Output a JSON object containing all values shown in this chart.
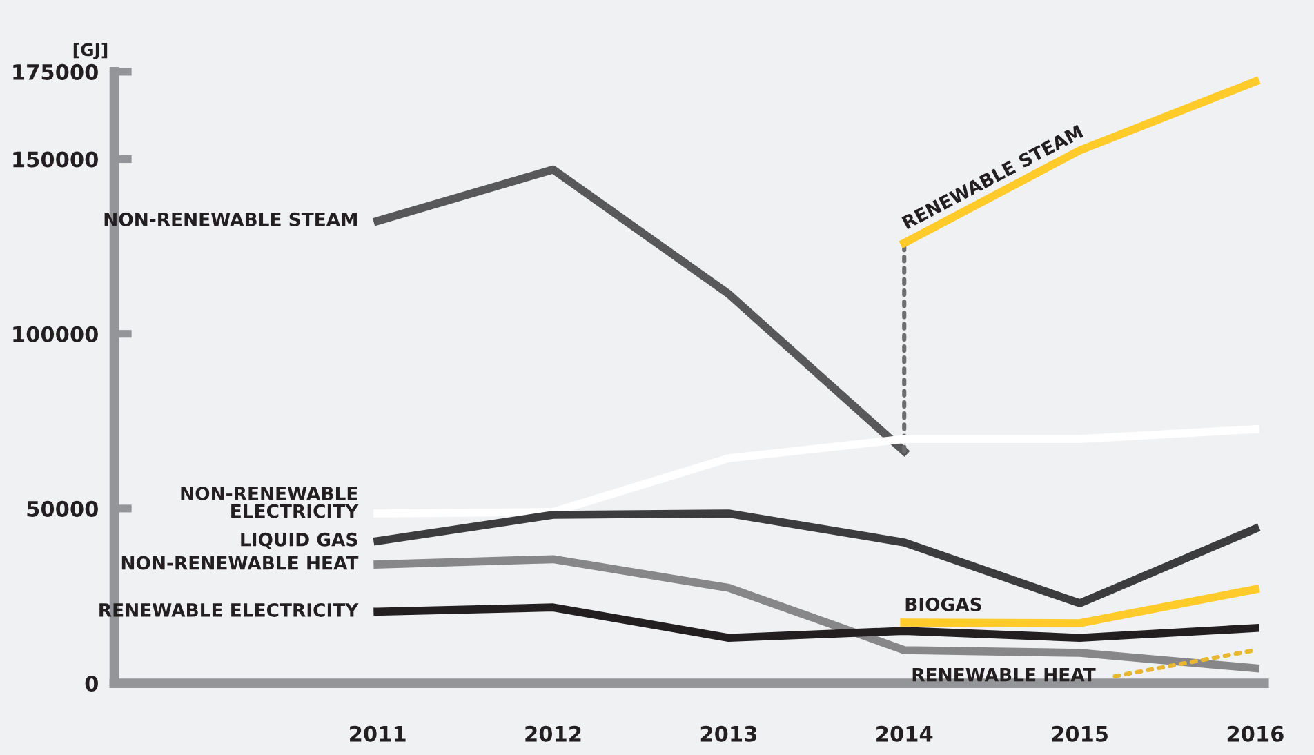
{
  "chart_data": {
    "type": "line",
    "ylabel": "[GJ]",
    "xlim": [
      2009.5,
      2016.05
    ],
    "xticks": [
      2011,
      2012,
      2013,
      2014,
      2015,
      2016
    ],
    "ylim": [
      0,
      175000
    ],
    "yticks": [
      0,
      50000,
      100000,
      150000,
      175000
    ],
    "grid": false,
    "legend": false,
    "marker": "none",
    "line_style": "solid",
    "series": [
      {
        "name": "NON-RENEWABLE STEAM",
        "color": "#58585a",
        "x": [
          2011,
          2012,
          2013,
          2014
        ],
        "values": [
          132300,
          147000,
          111400,
          66400
        ]
      },
      {
        "color": "#6d6d70",
        "x": [
          2014,
          2014
        ],
        "values": [
          66400,
          126000
        ],
        "line_style": "dotted"
      },
      {
        "name": "RENEWABLE STEAM",
        "color": "#ffcb2b",
        "x": [
          2014,
          2015,
          2016
        ],
        "values": [
          126000,
          152500,
          172200
        ]
      },
      {
        "name": "NON-RENEWABLE\nELECTRICITY",
        "color": "#ffffff",
        "x": [
          2011,
          2012,
          2013,
          2014,
          2015,
          2016
        ],
        "values": [
          48600,
          49000,
          64400,
          69900,
          69900,
          72700
        ]
      },
      {
        "name": "LIQUID GAS",
        "color": "#3c3c3e",
        "x": [
          2011,
          2012,
          2013,
          2014,
          2015,
          2016
        ],
        "values": [
          40700,
          48200,
          48600,
          40300,
          22900,
          44200
        ]
      },
      {
        "name": "NON-RENEWABLE HEAT",
        "color": "#87878a",
        "x": [
          2011,
          2012,
          2013,
          2014,
          2015,
          2016
        ],
        "values": [
          34000,
          35500,
          27300,
          9500,
          8700,
          4300
        ]
      },
      {
        "name": "RENEWABLE ELECTRICITY",
        "color": "#231f20",
        "x": [
          2011,
          2012,
          2013,
          2014,
          2015,
          2016
        ],
        "values": [
          20500,
          21700,
          13000,
          15000,
          13000,
          15800
        ]
      },
      {
        "name": "BIOGAS",
        "color": "#ffcb2b",
        "x": [
          2014,
          2015,
          2016
        ],
        "values": [
          17400,
          17200,
          26900
        ]
      },
      {
        "name": "RENEWABLE HEAT",
        "color": "#e8b830",
        "x": [
          2015.2,
          2016
        ],
        "values": [
          2000,
          9500
        ],
        "line_style": "dotted"
      }
    ]
  }
}
